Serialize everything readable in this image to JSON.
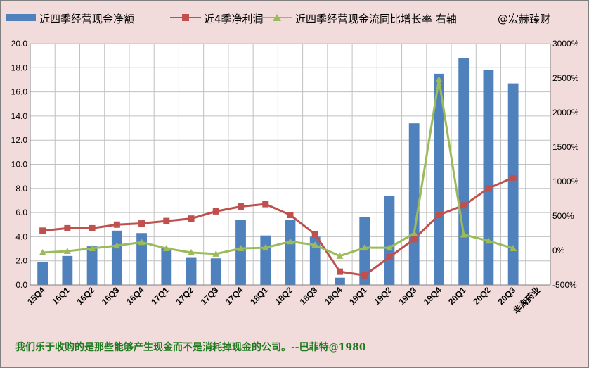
{
  "chart_data": {
    "type": "bar",
    "categories": [
      "15Q4",
      "16Q1",
      "16Q2",
      "16Q3",
      "16Q4",
      "17Q1",
      "17Q2",
      "17Q3",
      "17Q4",
      "18Q1",
      "18Q2",
      "18Q3",
      "18Q4",
      "19Q1",
      "19Q2",
      "19Q3",
      "19Q4",
      "20Q1",
      "20Q2",
      "20Q3",
      "华海药业"
    ],
    "series": [
      {
        "name": "近四季经营现金净额",
        "type": "bar",
        "axis": "left",
        "color": "#4f81bd",
        "values": [
          1.9,
          2.4,
          3.2,
          4.5,
          4.3,
          3.1,
          2.3,
          2.2,
          5.4,
          4.1,
          5.4,
          4.0,
          0.6,
          5.6,
          7.4,
          13.4,
          17.5,
          18.8,
          17.8,
          16.7,
          null
        ]
      },
      {
        "name": "近4季净利润",
        "type": "line",
        "axis": "left",
        "color": "#c0504d",
        "values": [
          4.5,
          4.7,
          4.7,
          5.0,
          5.1,
          5.3,
          5.5,
          6.1,
          6.5,
          6.7,
          5.8,
          4.2,
          1.1,
          0.8,
          2.3,
          3.8,
          5.8,
          6.6,
          8.0,
          8.9,
          null
        ]
      },
      {
        "name": "近四季经营现金流同比增长率 右轴",
        "type": "line",
        "axis": "right",
        "color": "#9bbb59",
        "values": [
          -30,
          -10,
          30,
          70,
          120,
          30,
          -30,
          -50,
          30,
          40,
          130,
          80,
          -80,
          40,
          40,
          250,
          2480,
          230,
          140,
          30,
          null
        ]
      }
    ],
    "y_left": {
      "min": 0,
      "max": 20,
      "ticks": [
        "0.0",
        "2.0",
        "4.0",
        "6.0",
        "8.0",
        "10.0",
        "12.0",
        "14.0",
        "16.0",
        "18.0",
        "20.0"
      ]
    },
    "y_right": {
      "min": -500,
      "max": 3000,
      "ticks": [
        "-500%",
        "0%",
        "500%",
        "1000%",
        "1500%",
        "2000%",
        "2500%",
        "3000%"
      ]
    },
    "grid": true,
    "legend_position": "top",
    "watermark": "@宏赫臻财"
  },
  "footer_text": "我们乐于收购的是那些能够产生现金而不是消耗掉现金的公司。--巴菲特@1980",
  "colors": {
    "background": "#f2dcdb",
    "plot": "#ffffff",
    "grid": "#c0c0c0",
    "footer": "#1e7a1e"
  }
}
